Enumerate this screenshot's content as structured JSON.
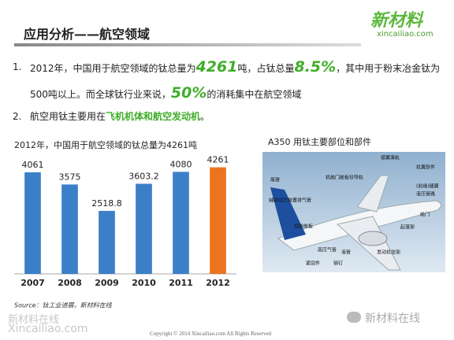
{
  "header": {
    "title": "应用分析——航空领域",
    "logo_main": "新材料",
    "logo_sub": "xincailiao.com"
  },
  "bullets": [
    {
      "marker": "1.",
      "segments": [
        {
          "text": "2012年，中国用于航空领域的钛总量为",
          "style": "plain"
        },
        {
          "text": "4261",
          "style": "big"
        },
        {
          "text": "吨，占钛总量",
          "style": "plain"
        },
        {
          "text": "8.5%",
          "style": "big"
        },
        {
          "text": "，其中用于粉末冶金钛为500吨以上。而全球钛行业来说，",
          "style": "plain"
        },
        {
          "text": "50%",
          "style": "big"
        },
        {
          "text": "的消耗集中在航空领域",
          "style": "plain"
        }
      ]
    },
    {
      "marker": "2.",
      "segments": [
        {
          "text": "航空用钛主要用在",
          "style": "plain"
        },
        {
          "text": "飞机机体和航空发动机",
          "style": "green"
        },
        {
          "text": "。",
          "style": "plain"
        }
      ]
    }
  ],
  "chart_data": {
    "type": "bar",
    "title": "2012年，中国用于航空领域的钛总量为4261吨",
    "categories": [
      "2007",
      "2008",
      "2009",
      "2010",
      "2011",
      "2012"
    ],
    "values": [
      4061,
      3575,
      2518.8,
      3603.2,
      4080,
      4261
    ],
    "colors": [
      "#3b7fc8",
      "#3b7fc8",
      "#3b7fc8",
      "#3b7fc8",
      "#3b7fc8",
      "#ec7420"
    ],
    "ylim": [
      0,
      4500
    ],
    "grid": false,
    "source": "Source：钛工业进展，新材料在线"
  },
  "image": {
    "caption": "A350 用钛主要部位和部件",
    "labels": [
      "襟翼滑轨",
      "机翼部件",
      "(前缘)缝翼",
      "液压管路",
      "机舱门舱板铰导轨",
      "尾锥",
      "辅助动力装置排气管",
      "短舱舱板",
      "起落架",
      "舱门",
      "高压气管",
      "液管",
      "发动机挂架",
      "紧固件",
      "铆钉"
    ]
  },
  "footer": {
    "watermark_main": "新材料在线",
    "watermark_sub": "Xincailiao.com",
    "copyright": "Copyright © 2014  Xincailiao.com  All Rights Reserved",
    "wechat": "新材料在线"
  }
}
